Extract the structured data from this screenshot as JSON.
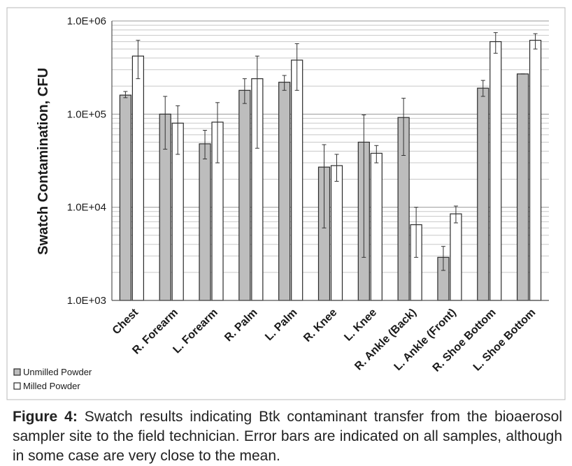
{
  "chart_data": {
    "type": "bar",
    "title": "",
    "ylabel": "Swatch Contamination, CFU",
    "xlabel": "",
    "yscale": "log",
    "ylim": [
      1000,
      1000000
    ],
    "y_tick_values": [
      1000,
      10000,
      100000,
      1000000
    ],
    "y_tick_labels": [
      "1.0E+03",
      "1.0E+04",
      "1.0E+05",
      "1.0E+06"
    ],
    "grid": true,
    "legend_position": "bottom-left",
    "categories": [
      "Chest",
      "R. Forearm",
      "L. Forearm",
      "R. Palm",
      "L. Palm",
      "R. Knee",
      "L. Knee",
      "R. Ankle (Back)",
      "L. Ankle (Front)",
      "R. Shoe Bottom",
      "L. Shoe Bottom"
    ],
    "series": [
      {
        "name": "Unmilled Powder",
        "color": "#bdbdbd",
        "values": [
          160000,
          100000,
          48000,
          180000,
          220000,
          27000,
          50000,
          92000,
          2900,
          190000,
          270000
        ],
        "error_low": [
          150000,
          42000,
          33000,
          130000,
          180000,
          6000,
          2900,
          36000,
          2100,
          155000,
          270000
        ],
        "error_high": [
          175000,
          155000,
          67000,
          240000,
          260000,
          47000,
          98000,
          148000,
          3800,
          230000,
          270000
        ]
      },
      {
        "name": "Milled Powder",
        "color": "#ffffff",
        "values": [
          420000,
          80000,
          82000,
          240000,
          380000,
          28000,
          38000,
          6500,
          8500,
          600000,
          620000
        ],
        "error_low": [
          240000,
          37000,
          30000,
          43000,
          180000,
          19000,
          30000,
          2900,
          6800,
          450000,
          500000
        ],
        "error_high": [
          620000,
          123000,
          133000,
          420000,
          570000,
          37000,
          46000,
          10000,
          10300,
          750000,
          730000
        ]
      }
    ]
  },
  "caption": {
    "lead": "Figure 4:",
    "text": " Swatch results indicating Btk contaminant transfer from the bioaerosol sampler site to the field technician. Error bars are indicated on all samples, although in some case are very close to the mean."
  }
}
